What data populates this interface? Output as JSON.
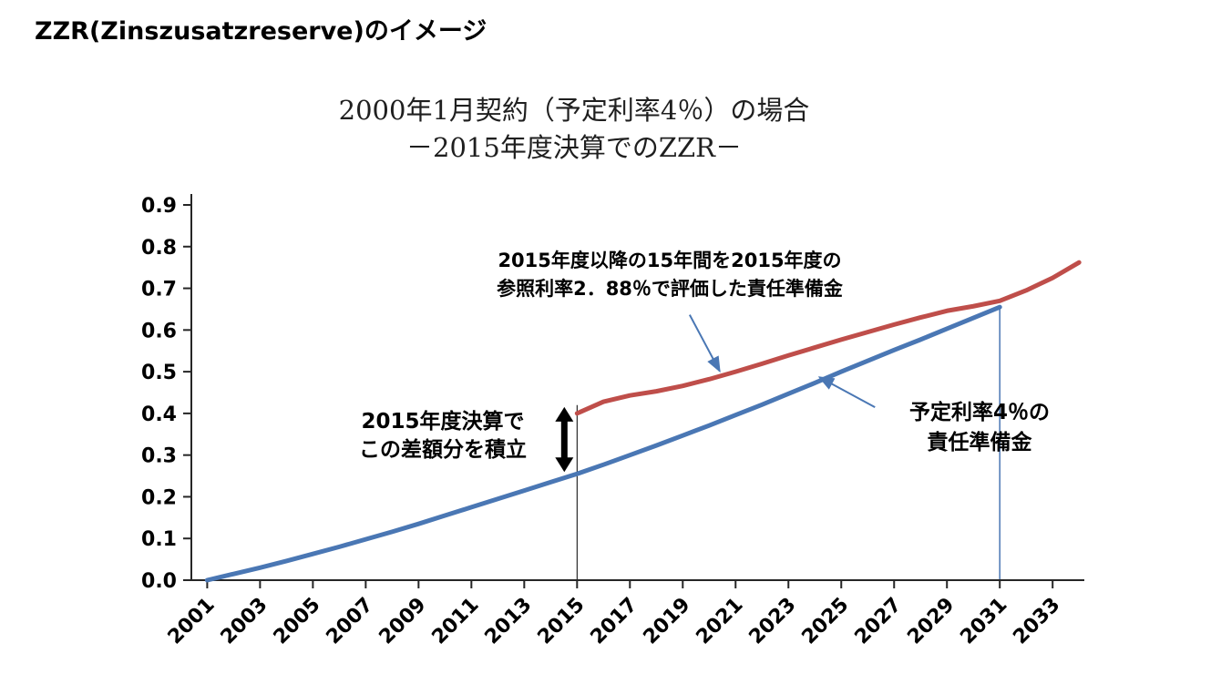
{
  "page": {
    "heading": "ZZR(Zinszusatzreserve)のイメージ"
  },
  "chart_data": {
    "type": "line",
    "title_line1": "2000年1月契約（予定利率4％）の場合",
    "title_line2": "－2015年度決算でのZZR－",
    "xlabel": "",
    "ylabel": "",
    "xlim": [
      2000.4,
      2034.2
    ],
    "ylim": [
      0.0,
      0.9
    ],
    "grid": false,
    "legend": "none",
    "y_tick_labels": [
      "0.0",
      "0.1",
      "0.2",
      "0.3",
      "0.4",
      "0.5",
      "0.6",
      "0.7",
      "0.8",
      "0.9"
    ],
    "x_tick_labels": [
      2001,
      2003,
      2005,
      2007,
      2009,
      2011,
      2013,
      2015,
      2017,
      2019,
      2021,
      2023,
      2025,
      2027,
      2029,
      2031,
      2033
    ],
    "colors": {
      "axis": "#262626",
      "blue_series": "#4a77b4",
      "red_series": "#bf4e4a",
      "pointer_arrow": "#4a77b4",
      "difference_arrow": "#000000"
    },
    "series": [
      {
        "name": "予定利率4％の責任準備金",
        "color": "#4a77b4",
        "width": 5,
        "x": [
          2001,
          2002,
          2003,
          2004,
          2005,
          2006,
          2007,
          2008,
          2009,
          2010,
          2011,
          2012,
          2013,
          2014,
          2015,
          2016,
          2017,
          2018,
          2019,
          2020,
          2021,
          2022,
          2023,
          2024,
          2025,
          2026,
          2027,
          2028,
          2029,
          2030,
          2031
        ],
        "y": [
          0.0,
          0.015,
          0.03,
          0.046,
          0.063,
          0.08,
          0.098,
          0.116,
          0.135,
          0.155,
          0.175,
          0.195,
          0.215,
          0.235,
          0.255,
          0.277,
          0.3,
          0.323,
          0.347,
          0.371,
          0.396,
          0.421,
          0.447,
          0.473,
          0.5,
          0.526,
          0.552,
          0.577,
          0.603,
          0.629,
          0.655
        ],
        "end_value_at_2031": 0.655
      },
      {
        "name": "2015年度以降の15年間を2015年度の参照利率2．88％で評価した責任準備金",
        "color": "#bf4e4a",
        "width": 5,
        "x": [
          2015,
          2016,
          2017,
          2018,
          2019,
          2020,
          2021,
          2022,
          2023,
          2024,
          2025,
          2026,
          2027,
          2028,
          2029,
          2030,
          2031,
          2032,
          2033,
          2034
        ],
        "y": [
          0.4,
          0.428,
          0.443,
          0.453,
          0.466,
          0.482,
          0.5,
          0.519,
          0.539,
          0.558,
          0.577,
          0.595,
          0.613,
          0.63,
          0.646,
          0.657,
          0.67,
          0.695,
          0.725,
          0.762
        ],
        "start_value_at_2015": 0.4
      }
    ],
    "annotations": {
      "reference_rate_label": {
        "line1": "2015年度以降の15年間を2015年度の",
        "line2": "参照利率2．88％で評価した責任準備金",
        "target": {
          "year": 2020.4,
          "value": 0.488
        }
      },
      "assumed_rate_label": {
        "line1": "予定利率4％の",
        "line2": "責任準備金",
        "target": {
          "year": 2024.0,
          "value": 0.476
        }
      },
      "accumulation_label": {
        "line1": "2015年度決算で",
        "line2": "この差額分を積立"
      },
      "difference_arrow": {
        "year": 2015,
        "from_value": 0.255,
        "to_value": 0.4
      },
      "vertical_line_2015": {
        "year": 2015,
        "top_value": 0.42
      },
      "vertical_line_2031": {
        "year": 2031,
        "top_value": 0.655
      }
    }
  }
}
